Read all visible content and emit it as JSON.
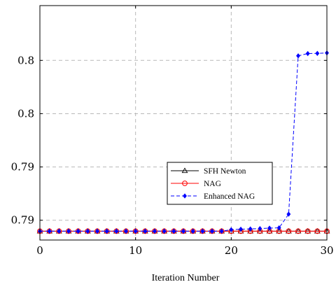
{
  "chart_data": {
    "type": "line",
    "title": "",
    "xlabel": "Iteration Number",
    "ylabel": "",
    "xlim": [
      0,
      30
    ],
    "ylim": [
      0.7877,
      0.8031
    ],
    "grid": true,
    "grid_style": "dashed",
    "legend_position": "lower-right",
    "x_ticks": [
      0,
      10,
      20,
      30
    ],
    "x_tick_labels": [
      "0",
      "10",
      "20",
      "30"
    ],
    "y_ticks": [
      0.789,
      0.7925,
      0.796,
      0.7995
    ],
    "y_tick_labels": [
      "0.79",
      "0.79",
      "0.8",
      "0.8"
    ],
    "x": [
      0,
      1,
      2,
      3,
      4,
      5,
      6,
      7,
      8,
      9,
      10,
      11,
      12,
      13,
      14,
      15,
      16,
      17,
      18,
      19,
      20,
      21,
      22,
      23,
      24,
      25,
      26,
      27,
      28,
      29,
      30
    ],
    "series": [
      {
        "name": "SFH Newton",
        "color": "#000000",
        "line_style": "solid",
        "marker": "triangle",
        "values": [
          0.78828,
          0.78828,
          0.78828,
          0.78828,
          0.78828,
          0.78828,
          0.78828,
          0.78828,
          0.78828,
          0.78828,
          0.78828,
          0.78828,
          0.78828,
          0.78828,
          0.78828,
          0.78828,
          0.78828,
          0.78828,
          0.78828,
          0.78828,
          0.78828,
          0.78828,
          0.78828,
          0.78828,
          0.78828,
          0.78828,
          0.78828,
          0.78828,
          0.78828,
          0.78828,
          0.78828
        ]
      },
      {
        "name": "NAG",
        "color": "#ff0000",
        "line_style": "solid",
        "marker": "circle",
        "values": [
          0.78828,
          0.78828,
          0.78828,
          0.78828,
          0.78828,
          0.78828,
          0.78828,
          0.78828,
          0.78828,
          0.78828,
          0.78828,
          0.78828,
          0.78828,
          0.78828,
          0.78828,
          0.78828,
          0.78828,
          0.78828,
          0.78828,
          0.78828,
          0.78828,
          0.78828,
          0.78828,
          0.78828,
          0.78828,
          0.78828,
          0.78828,
          0.78828,
          0.78828,
          0.78828,
          0.78828
        ]
      },
      {
        "name": "Enhanced NAG",
        "color": "#0000ff",
        "line_style": "dashed",
        "marker": "diamond",
        "values": [
          0.78828,
          0.78828,
          0.78828,
          0.78828,
          0.78828,
          0.78828,
          0.78828,
          0.78828,
          0.78828,
          0.78828,
          0.78828,
          0.78828,
          0.78828,
          0.78828,
          0.78828,
          0.78828,
          0.78828,
          0.78828,
          0.78828,
          0.78828,
          0.78838,
          0.78841,
          0.78843,
          0.78845,
          0.78848,
          0.7885,
          0.7894,
          0.7998,
          0.79995,
          0.79996,
          0.79999
        ]
      }
    ]
  }
}
